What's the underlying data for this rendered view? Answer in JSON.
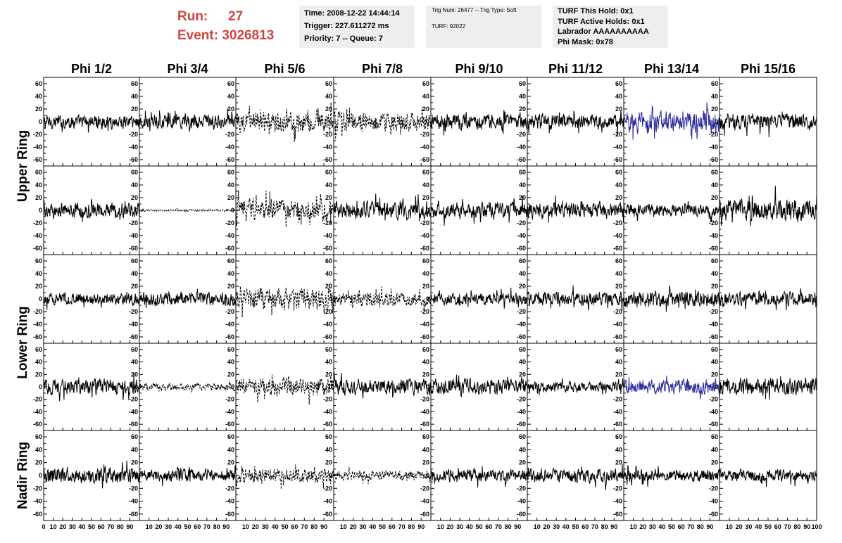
{
  "header": {
    "run_label": "Run:",
    "run_value": "27",
    "event_label": "Event:",
    "event_value": "3026813",
    "info1": [
      "Time: 2008-12-22 14:44:14",
      "Trigger: 227.611272 ms",
      "Priority: 7 -- Queue: 7"
    ],
    "info2": [
      "Trig Num: 26477 -- Trig Type: Soft",
      "TURF: 92022"
    ],
    "info3": [
      "TURF This Hold: 0x1",
      "TURF Active Holds: 0x1",
      "Labrador AAAAAAAAAA",
      "Phi Mask: 0x78"
    ]
  },
  "colors": {
    "accent_red": "#d0453e",
    "info_bg": "#eeeeee",
    "trace": "#000000",
    "trace_highlight": "#2b2b9e"
  },
  "chart_data": {
    "type": "line",
    "columns": [
      "Phi 1/2",
      "Phi 3/4",
      "Phi 5/6",
      "Phi 7/8",
      "Phi 9/10",
      "Phi 11/12",
      "Phi 13/14",
      "Phi 15/16"
    ],
    "ring_labels": [
      {
        "label": "Upper Ring",
        "rows": [
          0,
          1
        ]
      },
      {
        "label": "Lower Ring",
        "rows": [
          2,
          3
        ]
      },
      {
        "label": "Nadir Ring",
        "rows": [
          4
        ]
      }
    ],
    "ylim": [
      -70,
      70
    ],
    "yticks": [
      -60,
      -40,
      -20,
      0,
      20,
      40,
      60
    ],
    "xlim": [
      0,
      100
    ],
    "xticks": [
      0,
      10,
      20,
      30,
      40,
      50,
      60,
      70,
      80,
      90,
      100
    ],
    "samples_per_trace": 260,
    "panels": [
      [
        {
          "style": "solid",
          "color": "black",
          "amp": 14
        },
        {
          "style": "solid",
          "color": "black",
          "amp": 14
        },
        {
          "style": "dashed",
          "color": "black",
          "amp": 22
        },
        {
          "style": "dashed",
          "color": "black",
          "amp": 20
        },
        {
          "style": "solid",
          "color": "black",
          "amp": 16
        },
        {
          "style": "solid",
          "color": "black",
          "amp": 14
        },
        {
          "style": "solid",
          "color": "blue",
          "amp": 22
        },
        {
          "style": "solid",
          "color": "black",
          "amp": 16
        }
      ],
      [
        {
          "style": "solid",
          "color": "black",
          "amp": 15
        },
        {
          "style": "dashed",
          "color": "black",
          "amp": 2
        },
        {
          "style": "dashed",
          "color": "black",
          "amp": 22
        },
        {
          "style": "solid",
          "color": "black",
          "amp": 18
        },
        {
          "style": "solid",
          "color": "black",
          "amp": 16
        },
        {
          "style": "solid",
          "color": "black",
          "amp": 16
        },
        {
          "style": "solid",
          "color": "black",
          "amp": 12
        },
        {
          "style": "solid",
          "color": "black",
          "amp": 22
        }
      ],
      [
        {
          "style": "solid",
          "color": "black",
          "amp": 12
        },
        {
          "style": "solid",
          "color": "black",
          "amp": 14
        },
        {
          "style": "dashed",
          "color": "black",
          "amp": 22
        },
        {
          "style": "dashed",
          "color": "black",
          "amp": 14
        },
        {
          "style": "solid",
          "color": "black",
          "amp": 12
        },
        {
          "style": "solid",
          "color": "black",
          "amp": 14
        },
        {
          "style": "solid",
          "color": "black",
          "amp": 16
        },
        {
          "style": "solid",
          "color": "black",
          "amp": 14
        }
      ],
      [
        {
          "style": "solid",
          "color": "black",
          "amp": 16
        },
        {
          "style": "dashed",
          "color": "black",
          "amp": 8
        },
        {
          "style": "dashed",
          "color": "black",
          "amp": 18
        },
        {
          "style": "solid",
          "color": "black",
          "amp": 16
        },
        {
          "style": "solid",
          "color": "black",
          "amp": 16
        },
        {
          "style": "solid",
          "color": "black",
          "amp": 10
        },
        {
          "style": "solid",
          "color": "blue",
          "amp": 14
        },
        {
          "style": "solid",
          "color": "black",
          "amp": 18
        }
      ],
      [
        {
          "style": "solid",
          "color": "black",
          "amp": 16
        },
        {
          "style": "solid",
          "color": "black",
          "amp": 12
        },
        {
          "style": "dashed",
          "color": "black",
          "amp": 14
        },
        {
          "style": "dashed",
          "color": "black",
          "amp": 10
        },
        {
          "style": "solid",
          "color": "black",
          "amp": 12
        },
        {
          "style": "solid",
          "color": "black",
          "amp": 14
        },
        {
          "style": "solid",
          "color": "black",
          "amp": 12
        },
        {
          "style": "solid",
          "color": "black",
          "amp": 12
        }
      ]
    ]
  }
}
